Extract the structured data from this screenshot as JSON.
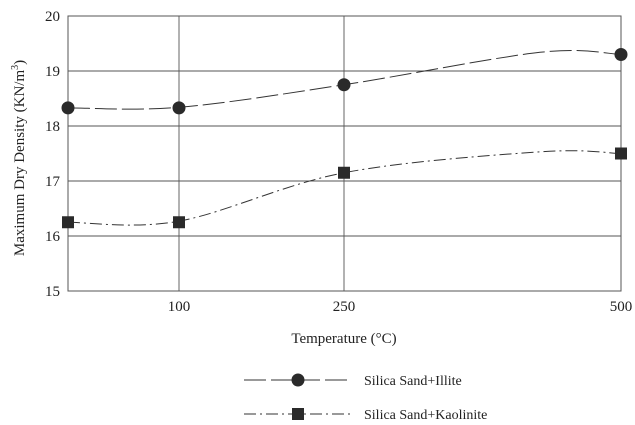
{
  "chart_data": {
    "type": "line",
    "title": "",
    "xlabel": "Temperature (°C)",
    "xlabel_main": "Temperature (",
    "xlabel_unit": "°C",
    "xlabel_close": ")",
    "ylabel": "Maximum Dry Density (KN/m³)",
    "ylabel_main": "Maximum Dry Density (KN/m",
    "ylabel_sup": "3",
    "ylabel_close": ")",
    "categories": [
      "",
      "100",
      "250",
      "500"
    ],
    "ylim": [
      15,
      20
    ],
    "yticks": [
      15,
      16,
      17,
      18,
      19,
      20
    ],
    "grid": true,
    "legend_position": "bottom",
    "series": [
      {
        "name": "Silica Sand+Illite",
        "marker": "circle",
        "line_style": "long-dash",
        "values": [
          18.33,
          18.33,
          18.75,
          19.3
        ],
        "curve_shape": [
          18.33,
          18.34,
          18.75,
          19.34,
          19.3
        ]
      },
      {
        "name": "Silica Sand+Kaolinite",
        "marker": "square",
        "line_style": "dash-dot",
        "values": [
          16.25,
          16.25,
          17.15,
          17.5
        ],
        "curve_shape": [
          16.25,
          16.27,
          17.15,
          17.53,
          17.5
        ]
      }
    ]
  },
  "colors": {
    "line": "#333333",
    "grid": "#555555",
    "marker": "#2a2a2a"
  }
}
